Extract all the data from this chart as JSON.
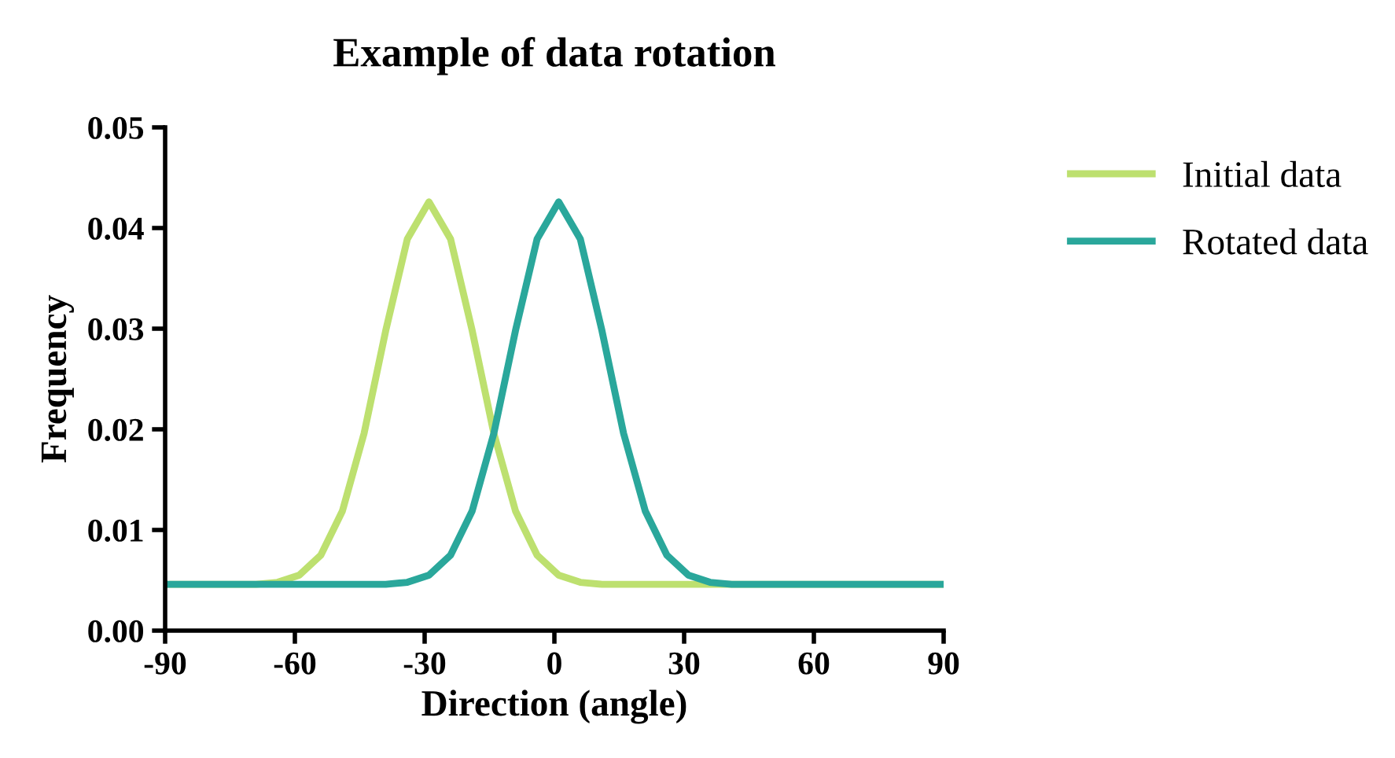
{
  "chart_data": {
    "type": "line",
    "title": "Example of data rotation",
    "xlabel": "Direction (angle)",
    "ylabel": "Frequency",
    "xlim": [
      -90,
      90
    ],
    "xticks": [
      -90,
      -60,
      -30,
      0,
      30,
      60,
      90
    ],
    "ylim": [
      0,
      0.05
    ],
    "yticks": [
      {
        "value": 0,
        "label": "0.00"
      },
      {
        "value": 0.01,
        "label": "0.01"
      },
      {
        "value": 0.02,
        "label": "0.02"
      },
      {
        "value": 0.03,
        "label": "0.03"
      },
      {
        "value": 0.04,
        "label": "0.04"
      },
      {
        "value": 0.05,
        "label": "0.05"
      }
    ],
    "grid": false,
    "legend": "right",
    "marker": "none",
    "line_style": "solid",
    "series": [
      {
        "name": "Initial data",
        "color": "#bde06f",
        "x": [
          -90,
          -69,
          -64,
          -59,
          -54,
          -49,
          -44,
          -39,
          -34,
          -29,
          -24,
          -19,
          -14,
          -9,
          -4,
          1,
          6,
          11,
          90
        ],
        "values": [
          0.0046,
          0.0046,
          0.0048,
          0.0055,
          0.0075,
          0.0119,
          0.0196,
          0.0298,
          0.0389,
          0.0426,
          0.0389,
          0.0298,
          0.0196,
          0.0119,
          0.0075,
          0.0055,
          0.0048,
          0.0046,
          0.0046
        ]
      },
      {
        "name": "Rotated data",
        "color": "#2aa79b",
        "x": [
          -90,
          -39,
          -34,
          -29,
          -24,
          -19,
          -14,
          -9,
          -4,
          1,
          6,
          11,
          16,
          21,
          26,
          31,
          36,
          41,
          90
        ],
        "values": [
          0.0046,
          0.0046,
          0.0048,
          0.0055,
          0.0075,
          0.0119,
          0.0196,
          0.0298,
          0.0389,
          0.0426,
          0.0389,
          0.0298,
          0.0196,
          0.0119,
          0.0075,
          0.0055,
          0.0048,
          0.0046,
          0.0046
        ]
      }
    ]
  }
}
